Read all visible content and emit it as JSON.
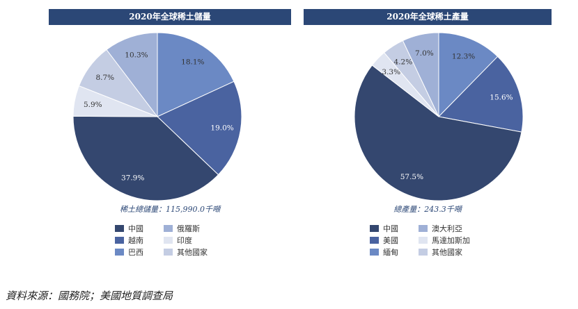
{
  "colors": {
    "title_bar": "#2b4776",
    "slices": {
      "china": "#34476f",
      "vietnam": "#4a63a0",
      "brazil": "#6b89c4",
      "russia": "#9fb0d6",
      "india": "#e0e5f1",
      "others": "#c4cde3",
      "myanmar": "#6b89c4",
      "australia": "#9fb0d6",
      "madagascar": "#e0e5f1"
    }
  },
  "source_note": "資料來源：國務院；美國地質調查局",
  "chart_data": [
    {
      "type": "pie",
      "title": "2020年全球稀土儲量",
      "total_label": "稀土總儲量：115,990.0千噸",
      "slices": [
        {
          "key": "brazil",
          "value": 18.1,
          "label": "18.1%"
        },
        {
          "key": "vietnam",
          "value": 19.0,
          "label": "19.0%"
        },
        {
          "key": "china",
          "value": 37.9,
          "label": "37.9%"
        },
        {
          "key": "india",
          "value": 5.9,
          "label": "5.9%"
        },
        {
          "key": "others",
          "value": 8.7,
          "label": "8.7%"
        },
        {
          "key": "russia",
          "value": 10.3,
          "label": "10.3%"
        }
      ],
      "legend": [
        {
          "key": "china",
          "label": "中國"
        },
        {
          "key": "russia",
          "label": "俄羅斯"
        },
        {
          "key": "vietnam",
          "label": "越南"
        },
        {
          "key": "india",
          "label": "印度"
        },
        {
          "key": "brazil",
          "label": "巴西"
        },
        {
          "key": "others",
          "label": "其他國家"
        }
      ]
    },
    {
      "type": "pie",
      "title": "2020年全球稀土產量",
      "total_label": "總產量：243.3千噸",
      "slices": [
        {
          "key": "myanmar",
          "value": 12.3,
          "label": "12.3%"
        },
        {
          "key": "usa",
          "value": 15.6,
          "label": "15.6%"
        },
        {
          "key": "china",
          "value": 57.5,
          "label": "57.5%"
        },
        {
          "key": "madagascar",
          "value": 3.3,
          "label": "3.3%"
        },
        {
          "key": "others",
          "value": 4.2,
          "label": "4.2%"
        },
        {
          "key": "australia",
          "value": 7.0,
          "label": "7.0%"
        }
      ],
      "legend": [
        {
          "key": "china",
          "label": "中國"
        },
        {
          "key": "australia",
          "label": "澳大利亞"
        },
        {
          "key": "usa",
          "label": "美國"
        },
        {
          "key": "madagascar",
          "label": "馬達加斯加"
        },
        {
          "key": "myanmar",
          "label": "緬甸"
        },
        {
          "key": "others",
          "label": "其他國家"
        }
      ]
    }
  ]
}
